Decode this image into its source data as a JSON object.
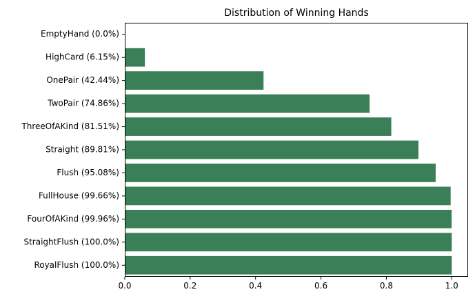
{
  "chart_data": {
    "type": "bar",
    "orientation": "horizontal",
    "title": "Distribution of Winning Hands",
    "xlabel": "",
    "ylabel": "",
    "xlim": [
      0,
      1.05
    ],
    "x_ticks": [
      0.0,
      0.2,
      0.4,
      0.6,
      0.8,
      1.0
    ],
    "x_tick_labels": [
      "0.0",
      "0.2",
      "0.4",
      "0.6",
      "0.8",
      "1.0"
    ],
    "grid": false,
    "bar_color": "#3a7f57",
    "categories": [
      "EmptyHand (0.0%)",
      "HighCard (6.15%)",
      "OnePair (42.44%)",
      "TwoPair (74.86%)",
      "ThreeOfAKind (81.51%)",
      "Straight (89.81%)",
      "Flush (95.08%)",
      "FullHouse (99.66%)",
      "FourOfAKind (99.96%)",
      "StraightFlush (100.0%)",
      "RoyalFlush (100.0%)"
    ],
    "values": [
      0.0,
      0.0615,
      0.4244,
      0.7486,
      0.8151,
      0.8981,
      0.9508,
      0.9966,
      0.9996,
      1.0,
      1.0
    ]
  }
}
